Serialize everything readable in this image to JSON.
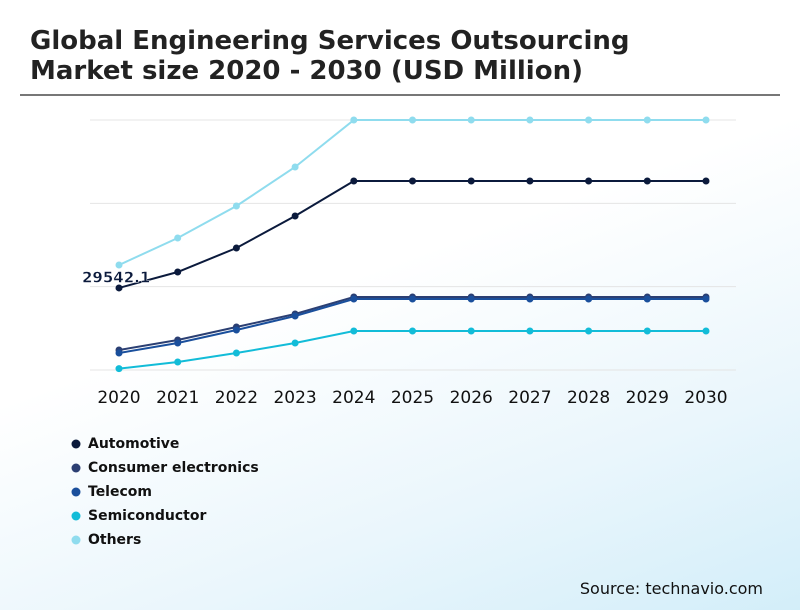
{
  "chart_data": {
    "type": "line",
    "title": "Global Engineering Services Outsourcing Market size 2020 - 2030 (USD Million)",
    "categories": [
      "2020",
      "2021",
      "2022",
      "2023",
      "2024",
      "2025",
      "2026",
      "2027",
      "2028",
      "2029",
      "2030"
    ],
    "series": [
      {
        "name": "Automotive",
        "color": "#0b1a3c",
        "values": [
          29542.1,
          35280,
          43920,
          55440,
          68040,
          68040,
          68040,
          68040,
          68040,
          68040,
          68040
        ]
      },
      {
        "name": "Consumer electronics",
        "color": "#2b3f73",
        "values": [
          7200,
          10800,
          15480,
          20160,
          26280,
          26280,
          26280,
          26280,
          26280,
          26280,
          26280
        ]
      },
      {
        "name": "Telecom",
        "color": "#1a4f9c",
        "values": [
          6120,
          9720,
          14400,
          19440,
          25560,
          25560,
          25560,
          25560,
          25560,
          25560,
          25560
        ]
      },
      {
        "name": "Semiconductor",
        "color": "#12bcd8",
        "values": [
          500,
          2880,
          6120,
          9720,
          14040,
          14040,
          14040,
          14040,
          14040,
          14040,
          14040
        ]
      },
      {
        "name": "Others",
        "color": "#8fdcee",
        "values": [
          37800,
          47520,
          59040,
          73080,
          90000,
          90000,
          90000,
          90000,
          90000,
          90000,
          90000
        ]
      }
    ],
    "ylim": [
      0,
      90000
    ],
    "yticks": [
      0,
      30000,
      60000,
      90000
    ],
    "grid": true,
    "ytick_labels": false,
    "legend": "bottom-left",
    "source": "Source: technavio.com"
  }
}
